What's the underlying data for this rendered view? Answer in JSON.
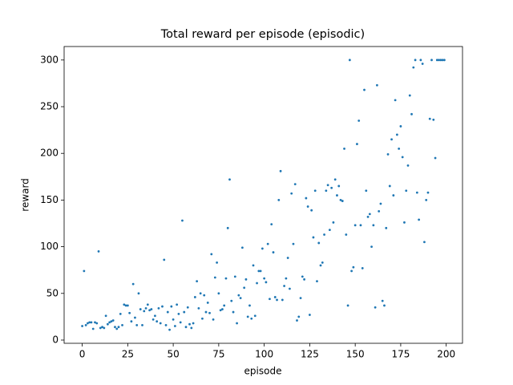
{
  "chart_data": {
    "type": "scatter",
    "title": "Total reward per episode (episodic)",
    "x_label": "episode",
    "y_label": "reward",
    "color": "#1f77b4",
    "x": [
      0,
      1,
      2,
      3,
      4,
      5,
      6,
      7,
      8,
      9,
      10,
      11,
      12,
      13,
      14,
      15,
      16,
      17,
      18,
      19,
      20,
      21,
      22,
      23,
      24,
      25,
      26,
      27,
      28,
      29,
      30,
      31,
      32,
      33,
      34,
      35,
      36,
      37,
      38,
      39,
      40,
      41,
      42,
      43,
      44,
      45,
      46,
      47,
      48,
      49,
      50,
      51,
      52,
      53,
      54,
      55,
      56,
      57,
      58,
      59,
      60,
      61,
      62,
      63,
      64,
      65,
      66,
      67,
      68,
      69,
      70,
      71,
      72,
      73,
      74,
      75,
      76,
      77,
      78,
      79,
      80,
      81,
      82,
      83,
      84,
      85,
      86,
      87,
      88,
      89,
      90,
      91,
      92,
      93,
      94,
      95,
      96,
      97,
      98,
      99,
      100,
      101,
      102,
      103,
      104,
      105,
      106,
      107,
      108,
      109,
      110,
      111,
      112,
      113,
      114,
      115,
      116,
      117,
      118,
      119,
      120,
      121,
      122,
      123,
      124,
      125,
      126,
      127,
      128,
      129,
      130,
      131,
      132,
      133,
      134,
      135,
      136,
      137,
      138,
      139,
      140,
      141,
      142,
      143,
      144,
      145,
      146,
      147,
      148,
      149,
      150,
      151,
      152,
      153,
      154,
      155,
      156,
      157,
      158,
      159,
      160,
      161,
      162,
      163,
      164,
      165,
      166,
      167,
      168,
      169,
      170,
      171,
      172,
      173,
      174,
      175,
      176,
      177,
      178,
      179,
      180,
      181,
      182,
      183,
      184,
      185,
      186,
      187,
      188,
      189,
      190,
      191,
      192,
      193,
      194,
      195,
      196,
      197,
      198,
      199
    ],
    "values": [
      15,
      74,
      16,
      18,
      19,
      19,
      12,
      19,
      18,
      95,
      13,
      14,
      13,
      26,
      17,
      19,
      20,
      21,
      14,
      12,
      14,
      28,
      16,
      38,
      37,
      37,
      29,
      20,
      60,
      24,
      16,
      50,
      33,
      16,
      31,
      34,
      38,
      32,
      33,
      22,
      26,
      20,
      34,
      18,
      36,
      86,
      16,
      30,
      11,
      36,
      22,
      15,
      38,
      28,
      19,
      128,
      30,
      14,
      35,
      17,
      13,
      18,
      46,
      63,
      34,
      50,
      23,
      48,
      30,
      40,
      29,
      92,
      22,
      67,
      83,
      50,
      32,
      33,
      37,
      66,
      120,
      172,
      42,
      30,
      68,
      18,
      48,
      45,
      99,
      56,
      65,
      25,
      37,
      23,
      80,
      26,
      61,
      74,
      74,
      98,
      66,
      62,
      103,
      44,
      124,
      94,
      46,
      43,
      150,
      181,
      43,
      58,
      66,
      88,
      55,
      157,
      103,
      167,
      21,
      25,
      45,
      68,
      65,
      152,
      143,
      27,
      139,
      110,
      160,
      63,
      104,
      80,
      83,
      113,
      160,
      166,
      118,
      163,
      126,
      172,
      155,
      165,
      150,
      149,
      205,
      113,
      37,
      300,
      74,
      78,
      123,
      210,
      235,
      123,
      77,
      268,
      160,
      132,
      135,
      100,
      123,
      35,
      273,
      138,
      146,
      42,
      37,
      120,
      199,
      165,
      215,
      155,
      257,
      220,
      205,
      229,
      196,
      126,
      160,
      187,
      262,
      242,
      292,
      300,
      158,
      129,
      300,
      296,
      105,
      150,
      158,
      237,
      300,
      236,
      195,
      300,
      300,
      300,
      300,
      300
    ],
    "xlim": [
      -9.95,
      208.95
    ],
    "ylim": [
      -3.45,
      314.45
    ],
    "xticks": [
      0,
      25,
      50,
      75,
      100,
      125,
      150,
      175,
      200
    ],
    "yticks": [
      0,
      50,
      100,
      150,
      200,
      250,
      300
    ]
  }
}
